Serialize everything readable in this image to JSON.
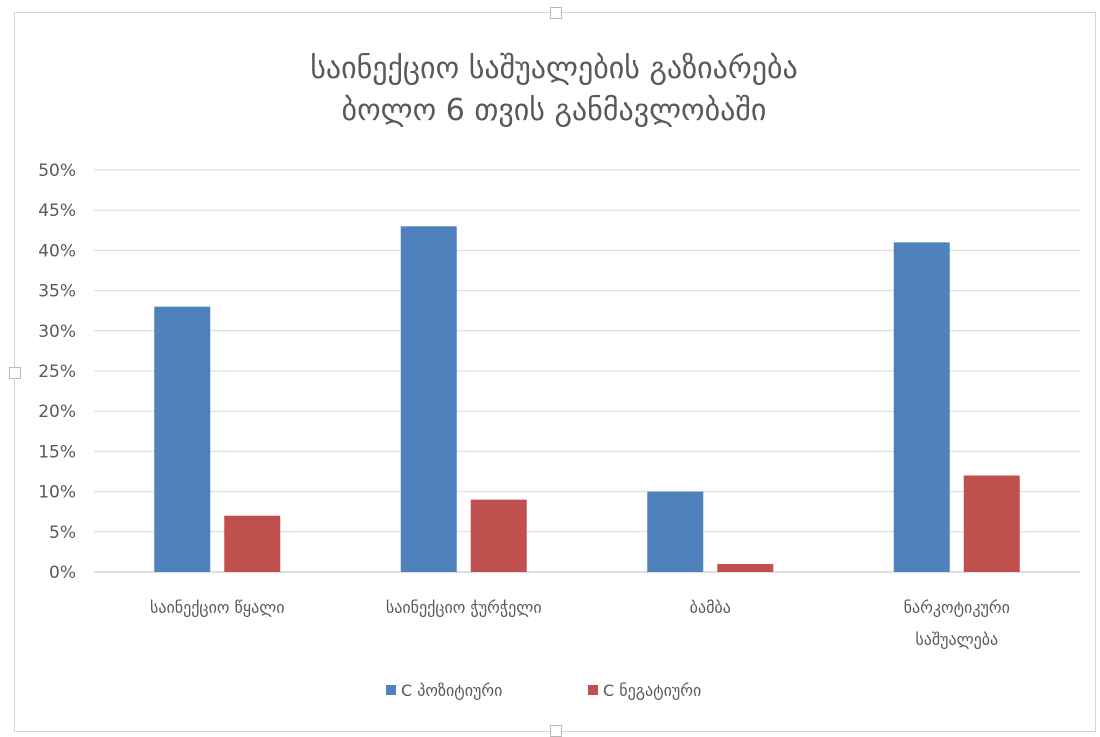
{
  "chart_data": {
    "type": "bar",
    "title": [
      "საინექციო საშუალების გაზიარება",
      "ბოლო 6 თვის განმავლობაში"
    ],
    "categories": [
      [
        "საინექციო წყალი"
      ],
      [
        "საინექციო ჭურჭელი"
      ],
      [
        "ბამბა"
      ],
      [
        "ნარკოტიკური",
        "საშუალება"
      ]
    ],
    "series": [
      {
        "name": "C პოზიტიური",
        "color": "#4f81bd",
        "values": [
          33,
          43,
          10,
          41
        ]
      },
      {
        "name": "C ნეგატიური",
        "color": "#c0504d",
        "values": [
          7,
          9,
          1,
          12
        ]
      }
    ],
    "ylim": [
      0,
      50
    ],
    "ytick_step": 5,
    "ytick_suffix": "%",
    "grid": true,
    "legend_position": "bottom",
    "xlabel": "",
    "ylabel": ""
  }
}
